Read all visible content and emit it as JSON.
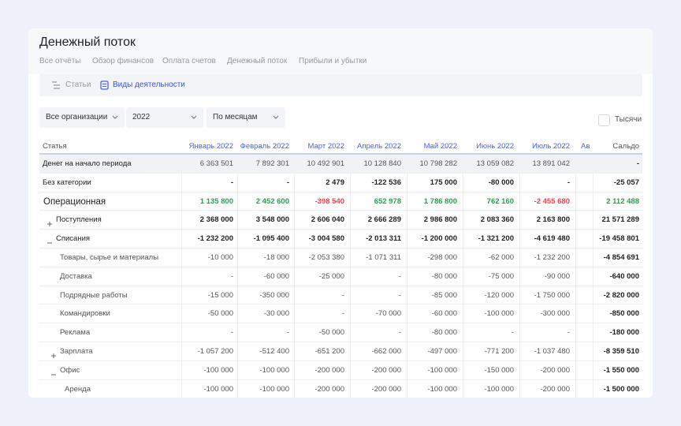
{
  "header": {
    "title": "Денежный поток",
    "tabs": [
      "Все отчёты",
      "Обзор финансов",
      "Оплата счетов",
      "Денежный поток",
      "Прибыли и убытки"
    ]
  },
  "subtabs": [
    "Статьи",
    "Виды деятельности"
  ],
  "filters": {
    "organization": "Все организации",
    "year": "2022",
    "period": "По месяцам",
    "units": "Тысячи"
  },
  "table": {
    "columns": [
      "Статья",
      "Январь 2022",
      "Февраль 2022",
      "Март 2022",
      "Апрель 2022",
      "Май 2022",
      "Июнь 2022",
      "Июль 2022",
      "Ав",
      "Сальдо"
    ],
    "rows": [
      {
        "label": "Денег на начало периода",
        "cells": [
          "6 363 501",
          "7 892 301",
          "10 492 901",
          "10 128 840",
          "10 798 282",
          "13 059 082",
          "13 891 042"
        ],
        "total": "-"
      },
      {
        "label": "Без категории",
        "cells": [
          "-",
          "-",
          "2 479",
          "-122 536",
          "175 000",
          "-80 000",
          "-"
        ],
        "total": "-25 057"
      },
      {
        "label": "Операционная",
        "cells": [
          "1 135 800",
          "2 452 600",
          "-398 540",
          "652 978",
          "1 786 800",
          "762 160",
          "-2 455 680"
        ],
        "total": "2 112 488"
      },
      {
        "label": "Поступления",
        "cells": [
          "2 368 000",
          "3 548 000",
          "2 606 040",
          "2 666 289",
          "2 986 800",
          "2 083 360",
          "2 163 800"
        ],
        "total": "21 571 289"
      },
      {
        "label": "Списания",
        "cells": [
          "-1 232 200",
          "-1 095 400",
          "-3 004 580",
          "-2 013 311",
          "-1 200 000",
          "-1 321 200",
          "-4 619 480"
        ],
        "total": "-19 458 801"
      },
      {
        "label": "Товары, сырье и материалы",
        "cells": [
          "-10 000",
          "-18 000",
          "-2 053 380",
          "-1 071 311",
          "-298 000",
          "-62 000",
          "-1 232 200"
        ],
        "total": "-4 854 691"
      },
      {
        "label": "Доставка",
        "cells": [
          "-",
          "-60 000",
          "-25 000",
          "-",
          "-80 000",
          "-75 000",
          "-90 000"
        ],
        "total": "-640 000"
      },
      {
        "label": "Подрядные работы",
        "cells": [
          "-15 000",
          "-350 000",
          "-",
          "-",
          "-85 000",
          "-120 000",
          "-1 750 000"
        ],
        "total": "-2 820 000"
      },
      {
        "label": "Командировки",
        "cells": [
          "-50 000",
          "-30 000",
          "-",
          "-70 000",
          "-60 000",
          "-100 000",
          "-300 000"
        ],
        "total": "-850 000"
      },
      {
        "label": "Реклама",
        "cells": [
          "-",
          "-",
          "-50 000",
          "-",
          "-80 000",
          "-",
          "-"
        ],
        "total": "-180 000"
      },
      {
        "label": "Зарплата",
        "cells": [
          "-1 057 200",
          "-512 400",
          "-651 200",
          "-662 000",
          "-497 000",
          "-771 200",
          "-1 037 480"
        ],
        "total": "-8 359 510"
      },
      {
        "label": "Офис",
        "cells": [
          "-100 000",
          "-100 000",
          "-200 000",
          "-200 000",
          "-100 000",
          "-150 000",
          "-200 000"
        ],
        "total": "-1 550 000"
      },
      {
        "label": "Аренда",
        "cells": [
          "-100 000",
          "-100 000",
          "-200 000",
          "-200 000",
          "-100 000",
          "-100 000",
          "-200 000"
        ],
        "total": "-1 500 000"
      }
    ]
  }
}
